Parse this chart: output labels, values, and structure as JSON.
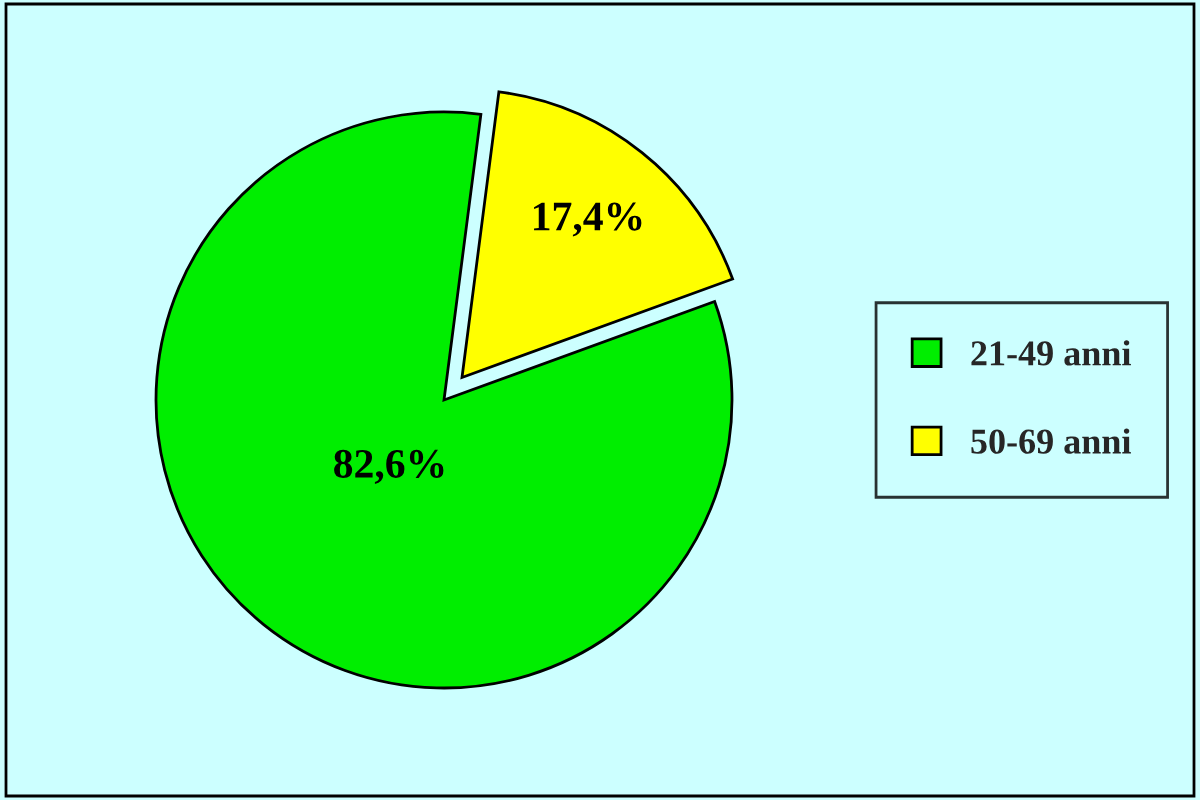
{
  "chart_data": {
    "type": "pie",
    "categories": [
      "21-49 anni",
      "50-69 anni"
    ],
    "values": [
      82.6,
      17.4
    ],
    "colors": [
      "#00ee00",
      "#ffff00"
    ],
    "value_labels": [
      "82,6%",
      "17,4%"
    ],
    "legend": "right"
  }
}
